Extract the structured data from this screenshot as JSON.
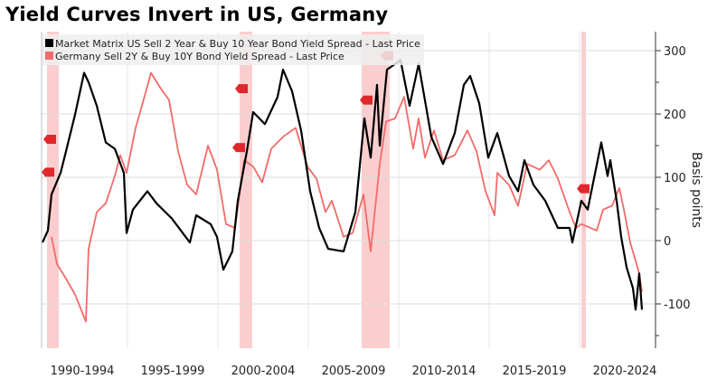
{
  "title": "Yield Curves Invert in US, Germany",
  "chart_data": {
    "type": "line",
    "title": "Yield Curves Invert in US, Germany",
    "ylabel": "Basis points",
    "xlabel": "",
    "y_axis_side": "right",
    "xlim": [
      1990.25,
      2024.2
    ],
    "ylim": [
      -170,
      330
    ],
    "yticks": [
      300,
      200,
      100,
      0,
      -100
    ],
    "xtick_labels": [
      {
        "label": "1990-1994",
        "center": 1992.5
      },
      {
        "label": "1995-1999",
        "center": 1997.5
      },
      {
        "label": "2000-2004",
        "center": 2002.5
      },
      {
        "label": "2005-2009",
        "center": 2007.5
      },
      {
        "label": "2010-2014",
        "center": 2012.5
      },
      {
        "label": "2015-2019",
        "center": 2017.5
      },
      {
        "label": "2020-2024",
        "center": 2022.5
      }
    ],
    "x_gridlines": [
      1995,
      2000,
      2005,
      2010,
      2015,
      2020
    ],
    "grid": true,
    "legend_position": "top-left",
    "recession_bands": [
      [
        1990.55,
        1991.2
      ],
      [
        2001.2,
        2001.9
      ],
      [
        2007.95,
        2009.5
      ],
      [
        2020.1,
        2020.35
      ]
    ],
    "recession_markers": [
      {
        "x": 1990.7,
        "y": 160
      },
      {
        "x": 1990.6,
        "y": 108
      },
      {
        "x": 2001.3,
        "y": 240
      },
      {
        "x": 2001.15,
        "y": 147
      },
      {
        "x": 2008.2,
        "y": 222
      },
      {
        "x": 2009.35,
        "y": 292
      },
      {
        "x": 2020.2,
        "y": 82
      }
    ],
    "series": [
      {
        "name": "Market Matrix US Sell 2 Year & Buy 10 Year Bond Yield Spread - Last Price",
        "color": "#000000",
        "x": [
          1990.3,
          1990.6,
          1990.8,
          1991.3,
          1991.6,
          1992.1,
          1992.6,
          1992.85,
          1993.3,
          1993.8,
          1994.3,
          1994.8,
          1994.95,
          1995.3,
          1996.1,
          1996.6,
          1997.45,
          1998.45,
          1998.8,
          1999.6,
          1999.95,
          2000.3,
          2000.8,
          2001.1,
          2001.6,
          2001.95,
          2002.6,
          2003.3,
          2003.6,
          2004.1,
          2004.6,
          2005.1,
          2005.6,
          2006.1,
          2006.95,
          2007.6,
          2008.1,
          2008.45,
          2008.8,
          2008.95,
          2009.35,
          2010.1,
          2010.6,
          2011.1,
          2011.8,
          2012.45,
          2013.1,
          2013.6,
          2013.95,
          2014.45,
          2014.95,
          2015.45,
          2016.1,
          2016.6,
          2016.95,
          2017.45,
          2018.1,
          2018.8,
          2019.45,
          2019.6,
          2020.1,
          2020.45,
          2021.2,
          2021.55,
          2021.7,
          2022.05,
          2022.3,
          2022.6,
          2022.95,
          2023.1,
          2023.3,
          2023.45
        ],
        "y": [
          -3,
          16,
          73,
          107,
          141,
          199,
          265,
          250,
          213,
          155,
          145,
          107,
          12,
          49,
          78,
          59,
          35,
          -3,
          40,
          26,
          6,
          -46,
          -17,
          63,
          141,
          203,
          184,
          227,
          270,
          236,
          174,
          78,
          20,
          -13,
          -17,
          45,
          193,
          131,
          246,
          150,
          270,
          285,
          213,
          279,
          164,
          121,
          170,
          246,
          260,
          217,
          131,
          170,
          102,
          78,
          127,
          88,
          63,
          20,
          20,
          -3,
          63,
          49,
          155,
          102,
          127,
          63,
          6,
          -42,
          -75,
          -109,
          -52,
          -109
        ]
      },
      {
        "name": "Germany Sell 2Y & Buy 10Y Bond Yield Spread - Last Price",
        "color": "#f26b6b",
        "x": [
          1990.8,
          1991.1,
          1991.6,
          1992.1,
          1992.7,
          1992.85,
          1993.3,
          1993.8,
          1994.3,
          1994.6,
          1994.95,
          1995.45,
          1995.8,
          1996.3,
          1996.8,
          1997.3,
          1997.8,
          1998.3,
          1998.8,
          1999.45,
          1999.95,
          2000.45,
          2000.95,
          2001.45,
          2001.95,
          2002.45,
          2002.95,
          2003.6,
          2004.3,
          2004.95,
          2005.45,
          2005.95,
          2006.3,
          2006.95,
          2007.45,
          2008.05,
          2008.45,
          2008.95,
          2009.3,
          2009.8,
          2010.3,
          2010.8,
          2011.1,
          2011.45,
          2011.95,
          2012.45,
          2013.1,
          2013.8,
          2014.3,
          2014.8,
          2015.3,
          2015.45,
          2016.1,
          2016.6,
          2017.1,
          2017.8,
          2018.3,
          2018.8,
          2019.45,
          2019.8,
          2020.1,
          2020.95,
          2021.3,
          2021.8,
          2022.2,
          2022.45,
          2022.8,
          2023.1,
          2023.3,
          2023.45
        ],
        "y": [
          6,
          -37,
          -60,
          -85,
          -128,
          -13,
          45,
          59,
          102,
          135,
          107,
          178,
          213,
          265,
          242,
          222,
          141,
          88,
          73,
          150,
          112,
          26,
          20,
          127,
          117,
          92,
          145,
          164,
          178,
          117,
          98,
          45,
          63,
          6,
          12,
          73,
          -17,
          121,
          188,
          193,
          227,
          145,
          193,
          131,
          174,
          127,
          135,
          174,
          141,
          78,
          40,
          107,
          88,
          55,
          121,
          112,
          127,
          98,
          45,
          20,
          26,
          16,
          49,
          55,
          83,
          49,
          -3,
          -32,
          -52,
          -81
        ]
      }
    ]
  }
}
